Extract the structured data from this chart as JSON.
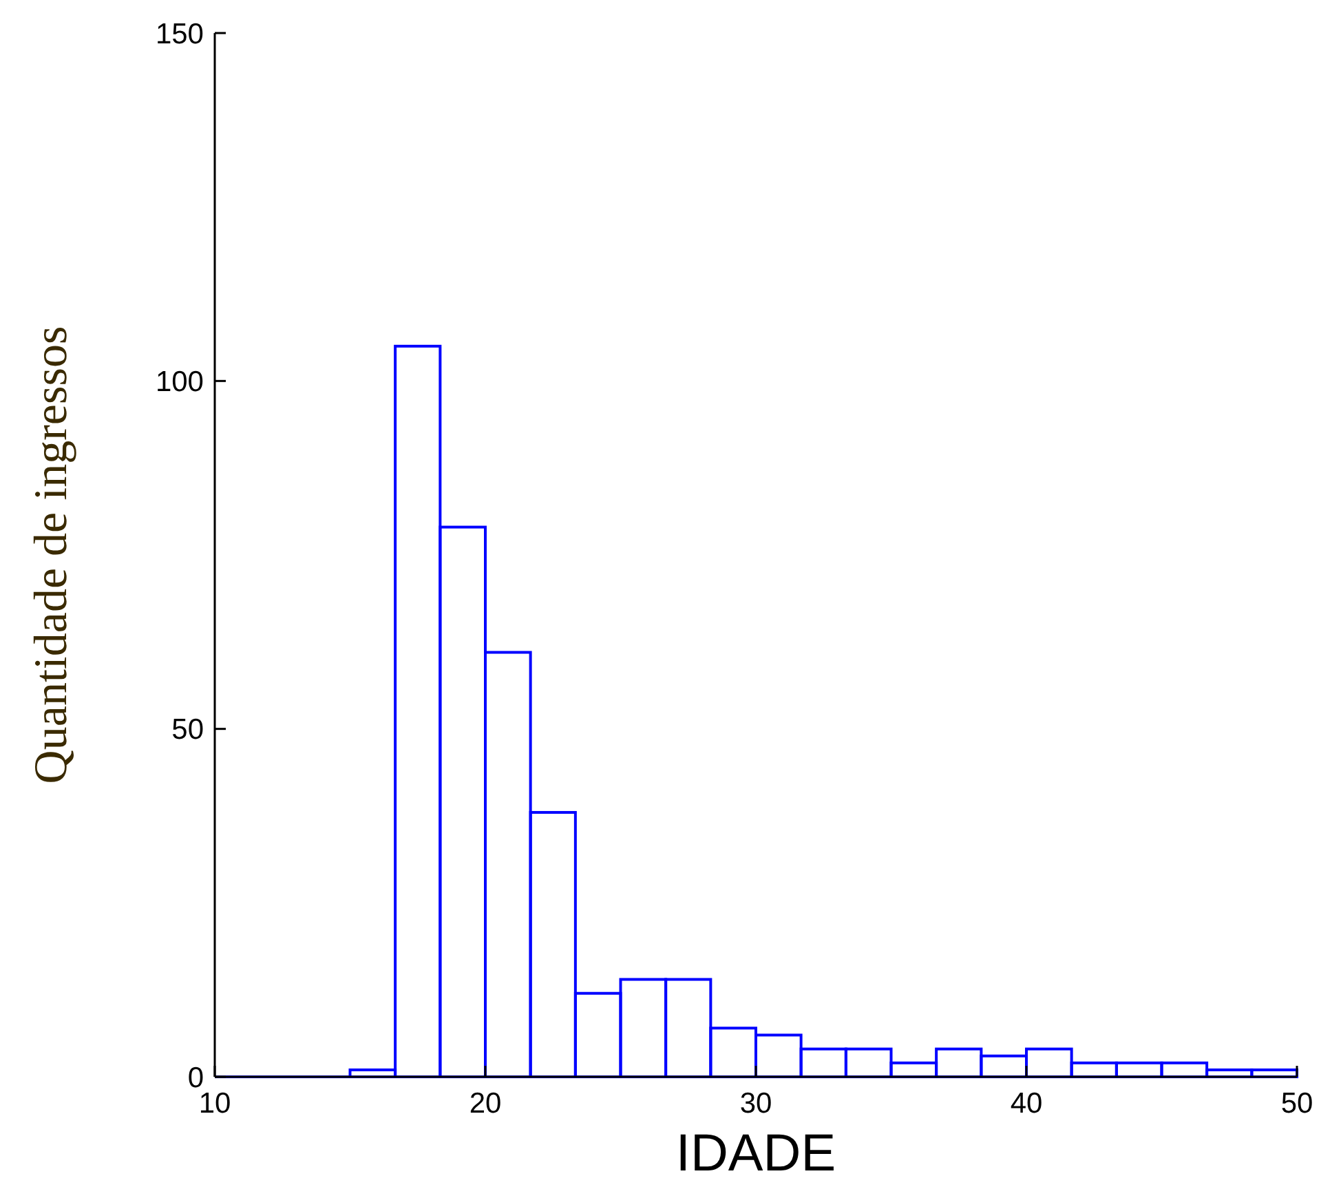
{
  "chart_data": {
    "type": "histogram",
    "xlabel": "IDADE",
    "ylabel": "Quantidade de ingressos",
    "bins": [
      15,
      16.67,
      18.33,
      20,
      21.67,
      23.33,
      25,
      26.67,
      28.33,
      30,
      31.67,
      33.33,
      35,
      36.67,
      38.33,
      40,
      41.67,
      43.33,
      45,
      46.67,
      48.33,
      50
    ],
    "values": [
      1,
      105,
      79,
      61,
      38,
      12,
      14,
      14,
      7,
      6,
      4,
      4,
      2,
      4,
      3,
      4,
      2,
      2,
      2,
      1,
      1
    ],
    "color": "#0000ff",
    "xlim": [
      10,
      50
    ],
    "xticks": [
      10,
      20,
      30,
      40,
      50
    ],
    "ylim": [
      0,
      150
    ],
    "yticks": [
      0,
      50,
      100,
      150
    ],
    "grid": false
  }
}
